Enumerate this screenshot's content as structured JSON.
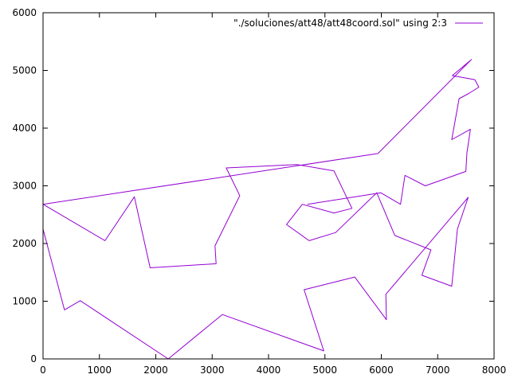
{
  "chart_data": {
    "type": "line",
    "title": "",
    "xlabel": "",
    "ylabel": "",
    "xlim": [
      0,
      8000
    ],
    "ylim": [
      0,
      6000
    ],
    "x_ticks": [
      0,
      1000,
      2000,
      3000,
      4000,
      5000,
      6000,
      7000,
      8000
    ],
    "y_ticks": [
      0,
      1000,
      2000,
      3000,
      4000,
      5000,
      6000
    ],
    "x_tick_labels": [
      "0",
      "1000",
      "2000",
      "3000",
      "4000",
      "5000",
      "6000",
      "7000",
      "8000"
    ],
    "y_tick_labels": [
      "0",
      "1000",
      "2000",
      "3000",
      "4000",
      "5000",
      "6000"
    ],
    "grid": false,
    "legend_position": "top-right",
    "series": [
      {
        "name": "\"./soluciones/att48/att48coord.sol\" using 2:3",
        "color": "#9400d3",
        "x": [
          0,
          0,
          380,
          660,
          2220,
          3180,
          4980,
          4630,
          5530,
          6090,
          6080,
          7540,
          7350,
          7250,
          6720,
          6880,
          6240,
          5920,
          5190,
          4720,
          4320,
          4600,
          5160,
          5480,
          5160,
          4500,
          3250,
          3490,
          3050,
          3070,
          1900,
          1620,
          1100,
          0,
          0,
          0,
          5940,
          7600,
          7260,
          7660,
          7730,
          7550,
          7380,
          7250,
          7580,
          7540,
          7520,
          7500,
          6780,
          6420,
          6340,
          5990,
          4690
        ],
        "y": [
          2680,
          2250,
          850,
          1010,
          0,
          770,
          140,
          1200,
          1420,
          680,
          1120,
          2800,
          2250,
          1260,
          1450,
          1890,
          2140,
          2880,
          2190,
          2050,
          2330,
          2680,
          2530,
          2610,
          3260,
          3370,
          3310,
          2830,
          1960,
          1650,
          1580,
          2810,
          2050,
          2680,
          2680,
          2680,
          3560,
          5190,
          4910,
          4840,
          4710,
          4600,
          4510,
          3800,
          3980,
          3710,
          3580,
          3250,
          3000,
          3180,
          2680,
          2880,
          2680
        ]
      }
    ]
  }
}
